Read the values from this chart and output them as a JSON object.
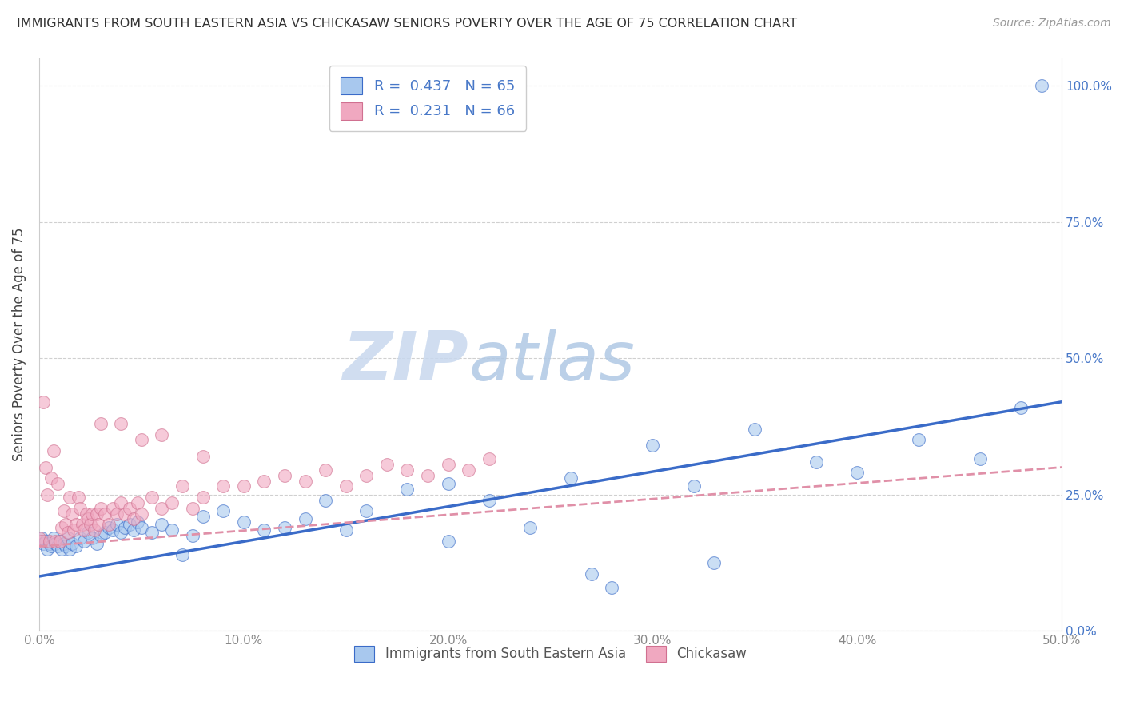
{
  "title": "IMMIGRANTS FROM SOUTH EASTERN ASIA VS CHICKASAW SENIORS POVERTY OVER THE AGE OF 75 CORRELATION CHART",
  "source": "Source: ZipAtlas.com",
  "ylabel": "Seniors Poverty Over the Age of 75",
  "legend_series": [
    {
      "label": "Immigrants from South Eastern Asia",
      "color": "#aac4e8",
      "R": 0.437,
      "N": 65
    },
    {
      "label": "Chickasaw",
      "color": "#f4a0b0",
      "R": 0.231,
      "N": 66
    }
  ],
  "blue_scatter_x": [
    0.001,
    0.002,
    0.003,
    0.004,
    0.005,
    0.006,
    0.007,
    0.008,
    0.009,
    0.01,
    0.011,
    0.012,
    0.013,
    0.014,
    0.015,
    0.016,
    0.018,
    0.02,
    0.022,
    0.024,
    0.026,
    0.028,
    0.03,
    0.032,
    0.034,
    0.036,
    0.038,
    0.04,
    0.042,
    0.044,
    0.046,
    0.048,
    0.05,
    0.055,
    0.06,
    0.065,
    0.07,
    0.075,
    0.08,
    0.09,
    0.1,
    0.11,
    0.12,
    0.13,
    0.14,
    0.15,
    0.16,
    0.18,
    0.2,
    0.22,
    0.24,
    0.26,
    0.28,
    0.3,
    0.32,
    0.35,
    0.38,
    0.4,
    0.43,
    0.46,
    0.48,
    0.49,
    0.33,
    0.27,
    0.2
  ],
  "blue_scatter_y": [
    0.17,
    0.16,
    0.165,
    0.15,
    0.16,
    0.155,
    0.17,
    0.16,
    0.155,
    0.165,
    0.15,
    0.16,
    0.155,
    0.17,
    0.15,
    0.16,
    0.155,
    0.17,
    0.165,
    0.18,
    0.17,
    0.16,
    0.175,
    0.18,
    0.19,
    0.185,
    0.195,
    0.18,
    0.19,
    0.195,
    0.185,
    0.2,
    0.19,
    0.18,
    0.195,
    0.185,
    0.14,
    0.175,
    0.21,
    0.22,
    0.2,
    0.185,
    0.19,
    0.205,
    0.24,
    0.185,
    0.22,
    0.26,
    0.27,
    0.24,
    0.19,
    0.28,
    0.08,
    0.34,
    0.265,
    0.37,
    0.31,
    0.29,
    0.35,
    0.315,
    0.41,
    1.0,
    0.125,
    0.105,
    0.165
  ],
  "pink_scatter_x": [
    0.0,
    0.001,
    0.002,
    0.003,
    0.004,
    0.005,
    0.006,
    0.007,
    0.008,
    0.009,
    0.01,
    0.011,
    0.012,
    0.013,
    0.014,
    0.015,
    0.016,
    0.017,
    0.018,
    0.019,
    0.02,
    0.021,
    0.022,
    0.023,
    0.024,
    0.025,
    0.026,
    0.027,
    0.028,
    0.029,
    0.03,
    0.032,
    0.034,
    0.036,
    0.038,
    0.04,
    0.042,
    0.044,
    0.046,
    0.048,
    0.05,
    0.055,
    0.06,
    0.065,
    0.07,
    0.075,
    0.08,
    0.09,
    0.1,
    0.11,
    0.12,
    0.13,
    0.14,
    0.15,
    0.16,
    0.17,
    0.18,
    0.19,
    0.2,
    0.21,
    0.22,
    0.04,
    0.06,
    0.08,
    0.03,
    0.05
  ],
  "pink_scatter_y": [
    0.17,
    0.165,
    0.42,
    0.3,
    0.25,
    0.165,
    0.28,
    0.33,
    0.165,
    0.27,
    0.165,
    0.19,
    0.22,
    0.195,
    0.18,
    0.245,
    0.215,
    0.185,
    0.195,
    0.245,
    0.225,
    0.195,
    0.185,
    0.215,
    0.205,
    0.195,
    0.215,
    0.185,
    0.215,
    0.195,
    0.225,
    0.215,
    0.195,
    0.225,
    0.215,
    0.235,
    0.215,
    0.225,
    0.205,
    0.235,
    0.215,
    0.245,
    0.225,
    0.235,
    0.265,
    0.225,
    0.245,
    0.265,
    0.265,
    0.275,
    0.285,
    0.275,
    0.295,
    0.265,
    0.285,
    0.305,
    0.295,
    0.285,
    0.305,
    0.295,
    0.315,
    0.38,
    0.36,
    0.32,
    0.38,
    0.35
  ],
  "xlim": [
    0.0,
    0.5
  ],
  "ylim": [
    0.0,
    1.05
  ],
  "right_yticks": [
    0.0,
    0.25,
    0.5,
    0.75,
    1.0
  ],
  "right_yticklabels": [
    "0.0%",
    "25.0%",
    "50.0%",
    "75.0%",
    "100.0%"
  ],
  "xticks": [
    0.0,
    0.1,
    0.2,
    0.3,
    0.4,
    0.5
  ],
  "xticklabels": [
    "0.0%",
    "10.0%",
    "20.0%",
    "30.0%",
    "40.0%",
    "50.0%"
  ],
  "blue_trend_x": [
    0.0,
    0.5
  ],
  "blue_trend_y": [
    0.1,
    0.42
  ],
  "pink_trend_x": [
    0.0,
    0.5
  ],
  "pink_trend_y": [
    0.155,
    0.3
  ],
  "watermark_zip": "ZIP",
  "watermark_atlas": "atlas",
  "watermark_color_zip": "#c8d8ee",
  "watermark_color_atlas": "#b0c8e4",
  "blue_line_color": "#3a6bc8",
  "pink_line_color": "#e090a8",
  "scatter_blue_color": "#a8c8ee",
  "scatter_pink_color": "#f0a8c0",
  "background_color": "#ffffff",
  "grid_color": "#d0d0d0",
  "title_color": "#333333",
  "source_color": "#999999",
  "ylabel_color": "#444444",
  "tick_color": "#888888",
  "right_tick_color": "#4878c8"
}
